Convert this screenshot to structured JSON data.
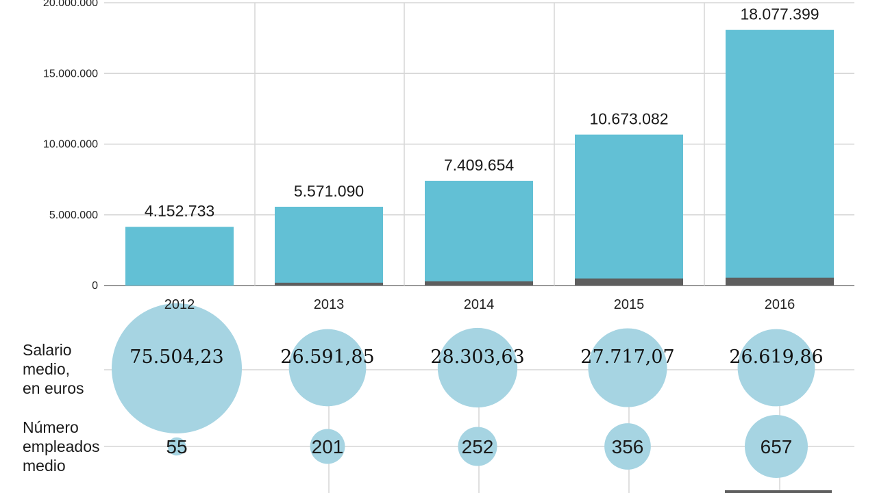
{
  "colors": {
    "bar": "#62c0d5",
    "bar_base": "#5e5e5e",
    "bubble": "#a6d4e2",
    "grid": "#d6d6d6",
    "axis": "#9a9a9a"
  },
  "chart_data": [
    {
      "type": "bar",
      "categories": [
        "2012",
        "2013",
        "2014",
        "2015",
        "2016"
      ],
      "series": [
        {
          "values": [
            4152733,
            5571090,
            7409654,
            10673082,
            18077399
          ]
        },
        {
          "values": [
            0,
            200000,
            300000,
            500000,
            550000
          ]
        }
      ],
      "data_labels": [
        "4.152.733",
        "5.571.090",
        "7.409.654",
        "10.673.082",
        "18.077.399"
      ],
      "ylim": [
        0,
        20000000
      ],
      "yticks": [
        0,
        5000000,
        10000000,
        15000000,
        20000000
      ],
      "ytick_labels": [
        "0",
        "5.000.000",
        "10.000.000",
        "15.000.000",
        "20.000.000"
      ],
      "grid": true
    },
    {
      "type": "scatter",
      "row_label": [
        "Salario",
        "medio,",
        "en euros"
      ],
      "categories": [
        "2012",
        "2013",
        "2014",
        "2015",
        "2016"
      ],
      "values": [
        75504.23,
        26591.85,
        28303.63,
        27717.07,
        26619.86
      ],
      "data_labels": [
        "75.504,23",
        "26.591,85",
        "28.303,63",
        "27.717,07",
        "26.619,86"
      ]
    },
    {
      "type": "scatter",
      "row_label": [
        "Número",
        "empleados",
        "medio"
      ],
      "categories": [
        "2012",
        "2013",
        "2014",
        "2015",
        "2016"
      ],
      "values": [
        55,
        201,
        252,
        356,
        657
      ],
      "data_labels": [
        "55",
        "201",
        "252",
        "356",
        "657"
      ]
    }
  ]
}
